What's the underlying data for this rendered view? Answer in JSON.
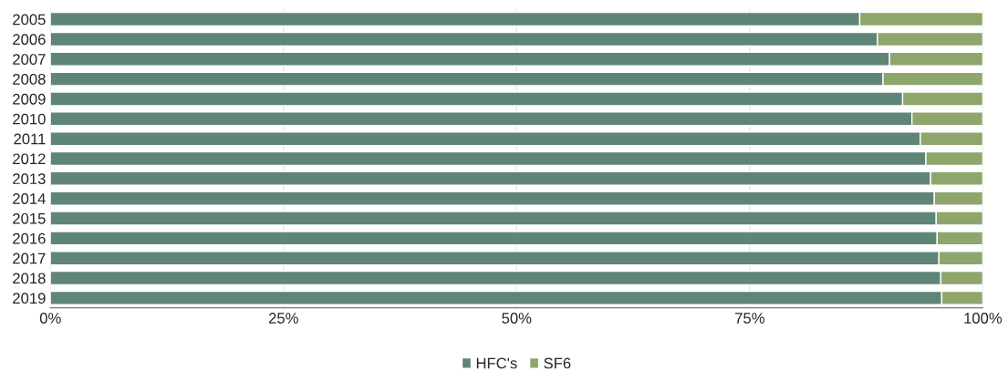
{
  "chart_data": {
    "type": "bar",
    "orientation": "horizontal",
    "stacked": true,
    "categories": [
      "2005",
      "2006",
      "2007",
      "2008",
      "2009",
      "2010",
      "2011",
      "2012",
      "2013",
      "2014",
      "2015",
      "2016",
      "2017",
      "2018",
      "2019"
    ],
    "series": [
      {
        "name": "HFC's",
        "color": "#5f8577",
        "values": [
          86.8,
          88.7,
          90.0,
          89.3,
          91.4,
          92.4,
          93.3,
          93.9,
          94.4,
          94.8,
          95.0,
          95.1,
          95.3,
          95.5,
          95.6
        ]
      },
      {
        "name": "SF6",
        "color": "#8ea66b",
        "values": [
          13.2,
          11.3,
          10.0,
          10.7,
          8.6,
          7.6,
          6.7,
          6.1,
          5.6,
          5.2,
          5.0,
          4.9,
          4.7,
          4.5,
          4.4
        ]
      }
    ],
    "xlim": [
      0,
      100
    ],
    "xticks": [
      {
        "value": 0,
        "label": "0%"
      },
      {
        "value": 25,
        "label": "25%"
      },
      {
        "value": 50,
        "label": "50%"
      },
      {
        "value": 75,
        "label": "75%"
      },
      {
        "value": 100,
        "label": "100%"
      }
    ],
    "grid": "x",
    "legend": "bottom"
  }
}
